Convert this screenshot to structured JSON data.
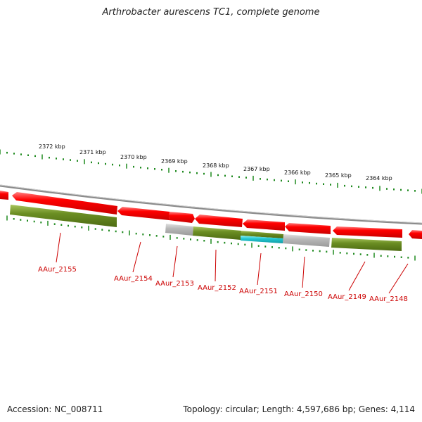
{
  "title": "Arthrobacter aurescens TC1, complete genome",
  "footer": {
    "accession": "Accession: NC_008711",
    "topology": "Topology: circular; Length: 4,597,686 bp; Genes: 4,114"
  },
  "colors": {
    "forward_gene": "#ff0000",
    "reverse_gene": "#ff0000",
    "green_feature": "#6b8e23",
    "cyan_feature": "#22c8d2",
    "grey_feature": "#b8b8b8",
    "tick_color": "#1f8a1f",
    "label_color": "#cc0000",
    "backbone": "#8a8a8a"
  },
  "scale_labels": [
    "2372 kbp",
    "2371 kbp",
    "2370 kbp",
    "2369 kbp",
    "2368 kbp",
    "2367 kbp",
    "2366 kbp",
    "2365 kbp",
    "2364 kbp"
  ],
  "gene_labels": [
    "AAur_2155",
    "AAur_2154",
    "AAur_2153",
    "AAur_2152",
    "AAur_2151",
    "AAur_2150",
    "AAur_2149",
    "AAur_2148"
  ]
}
